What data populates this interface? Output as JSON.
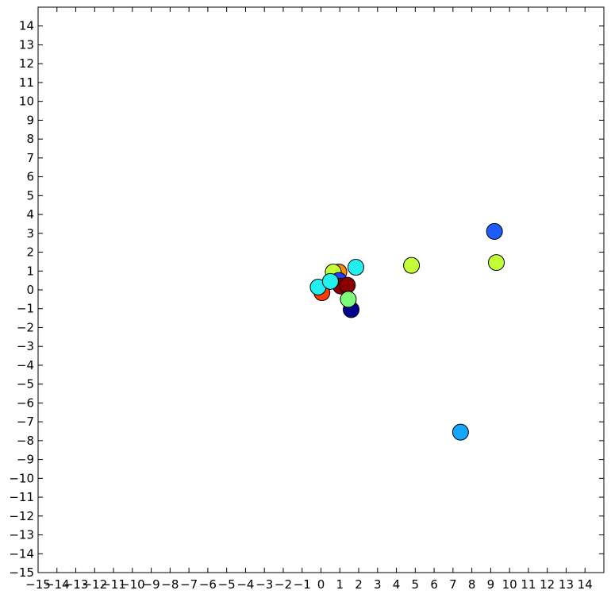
{
  "chart_data": {
    "type": "scatter",
    "title": "",
    "xlabel": "",
    "ylabel": "",
    "xlim": [
      -15,
      15
    ],
    "ylim": [
      -15,
      15
    ],
    "grid": false,
    "x_ticks": [
      "−15",
      "−14",
      "−13",
      "−12",
      "−11",
      "−10",
      "−9",
      "−8",
      "−7",
      "−6",
      "−5",
      "−4",
      "−3",
      "−2",
      "−1",
      "0",
      "1",
      "2",
      "3",
      "4",
      "5",
      "6",
      "7",
      "8",
      "9",
      "10",
      "11",
      "12",
      "13",
      "14"
    ],
    "y_ticks": [
      "14",
      "13",
      "12",
      "11",
      "10",
      "9",
      "8",
      "7",
      "6",
      "5",
      "4",
      "3",
      "2",
      "1",
      "0",
      "−1",
      "−2",
      "−3",
      "−4",
      "−5",
      "−6",
      "−7",
      "−8",
      "−9",
      "−10",
      "−11",
      "−12",
      "−13",
      "−14",
      "−15"
    ],
    "points": [
      {
        "x": 9.2,
        "y": 3.1,
        "color": "#1f5cff"
      },
      {
        "x": 9.3,
        "y": 1.45,
        "color": "#c2ff36"
      },
      {
        "x": 4.8,
        "y": 1.3,
        "color": "#c2ff36"
      },
      {
        "x": 7.4,
        "y": -7.55,
        "color": "#14a5ff"
      },
      {
        "x": 1.6,
        "y": -1.05,
        "color": "#00008f"
      },
      {
        "x": 0.05,
        "y": -0.15,
        "color": "#ff3a0a"
      },
      {
        "x": 0.95,
        "y": 0.95,
        "color": "#ff8a00"
      },
      {
        "x": 0.65,
        "y": 0.95,
        "color": "#c2ff36"
      },
      {
        "x": 0.95,
        "y": 0.5,
        "color": "#1f3dff"
      },
      {
        "x": 1.05,
        "y": 0.2,
        "color": "#8a0000"
      },
      {
        "x": 1.4,
        "y": 0.25,
        "color": "#8a0000"
      },
      {
        "x": 1.45,
        "y": -0.5,
        "color": "#7cff79"
      },
      {
        "x": 1.85,
        "y": 1.2,
        "color": "#22f0ee"
      },
      {
        "x": -0.15,
        "y": 0.15,
        "color": "#22f0ee"
      },
      {
        "x": 0.5,
        "y": 0.45,
        "color": "#22f0ee"
      }
    ]
  }
}
